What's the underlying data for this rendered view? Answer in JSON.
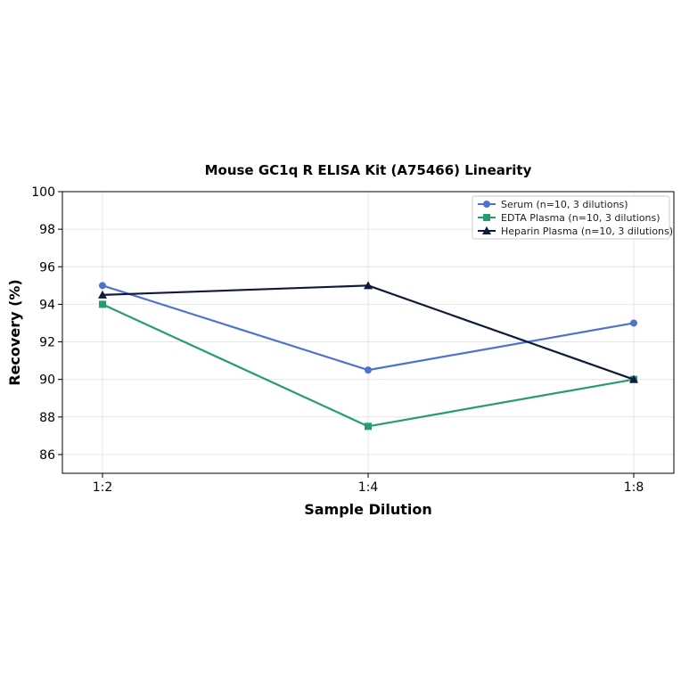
{
  "chart_data": {
    "type": "line",
    "title": "Mouse GC1q R ELISA Kit (A75466) Linearity",
    "xlabel": "Sample Dilution",
    "ylabel": "Recovery (%)",
    "categories": [
      "1:2",
      "1:4",
      "1:8"
    ],
    "ylim": [
      85,
      100
    ],
    "yticks": [
      86,
      88,
      90,
      92,
      94,
      96,
      98,
      100
    ],
    "grid": true,
    "legend_position": "top-right",
    "series": [
      {
        "name": "Serum (n=10, 3 dilutions)",
        "values": [
          95.0,
          90.5,
          93.0
        ],
        "color": "#4f72cf",
        "marker": "circle"
      },
      {
        "name": "EDTA Plasma (n=10, 3 dilutions)",
        "values": [
          94.0,
          87.5,
          90.0
        ],
        "color": "#279b76",
        "marker": "square"
      },
      {
        "name": "Heparin Plasma (n=10, 3 dilutions)",
        "values": [
          94.5,
          95.0,
          90.0
        ],
        "color": "#0f1a3c",
        "marker": "triangle"
      }
    ]
  }
}
